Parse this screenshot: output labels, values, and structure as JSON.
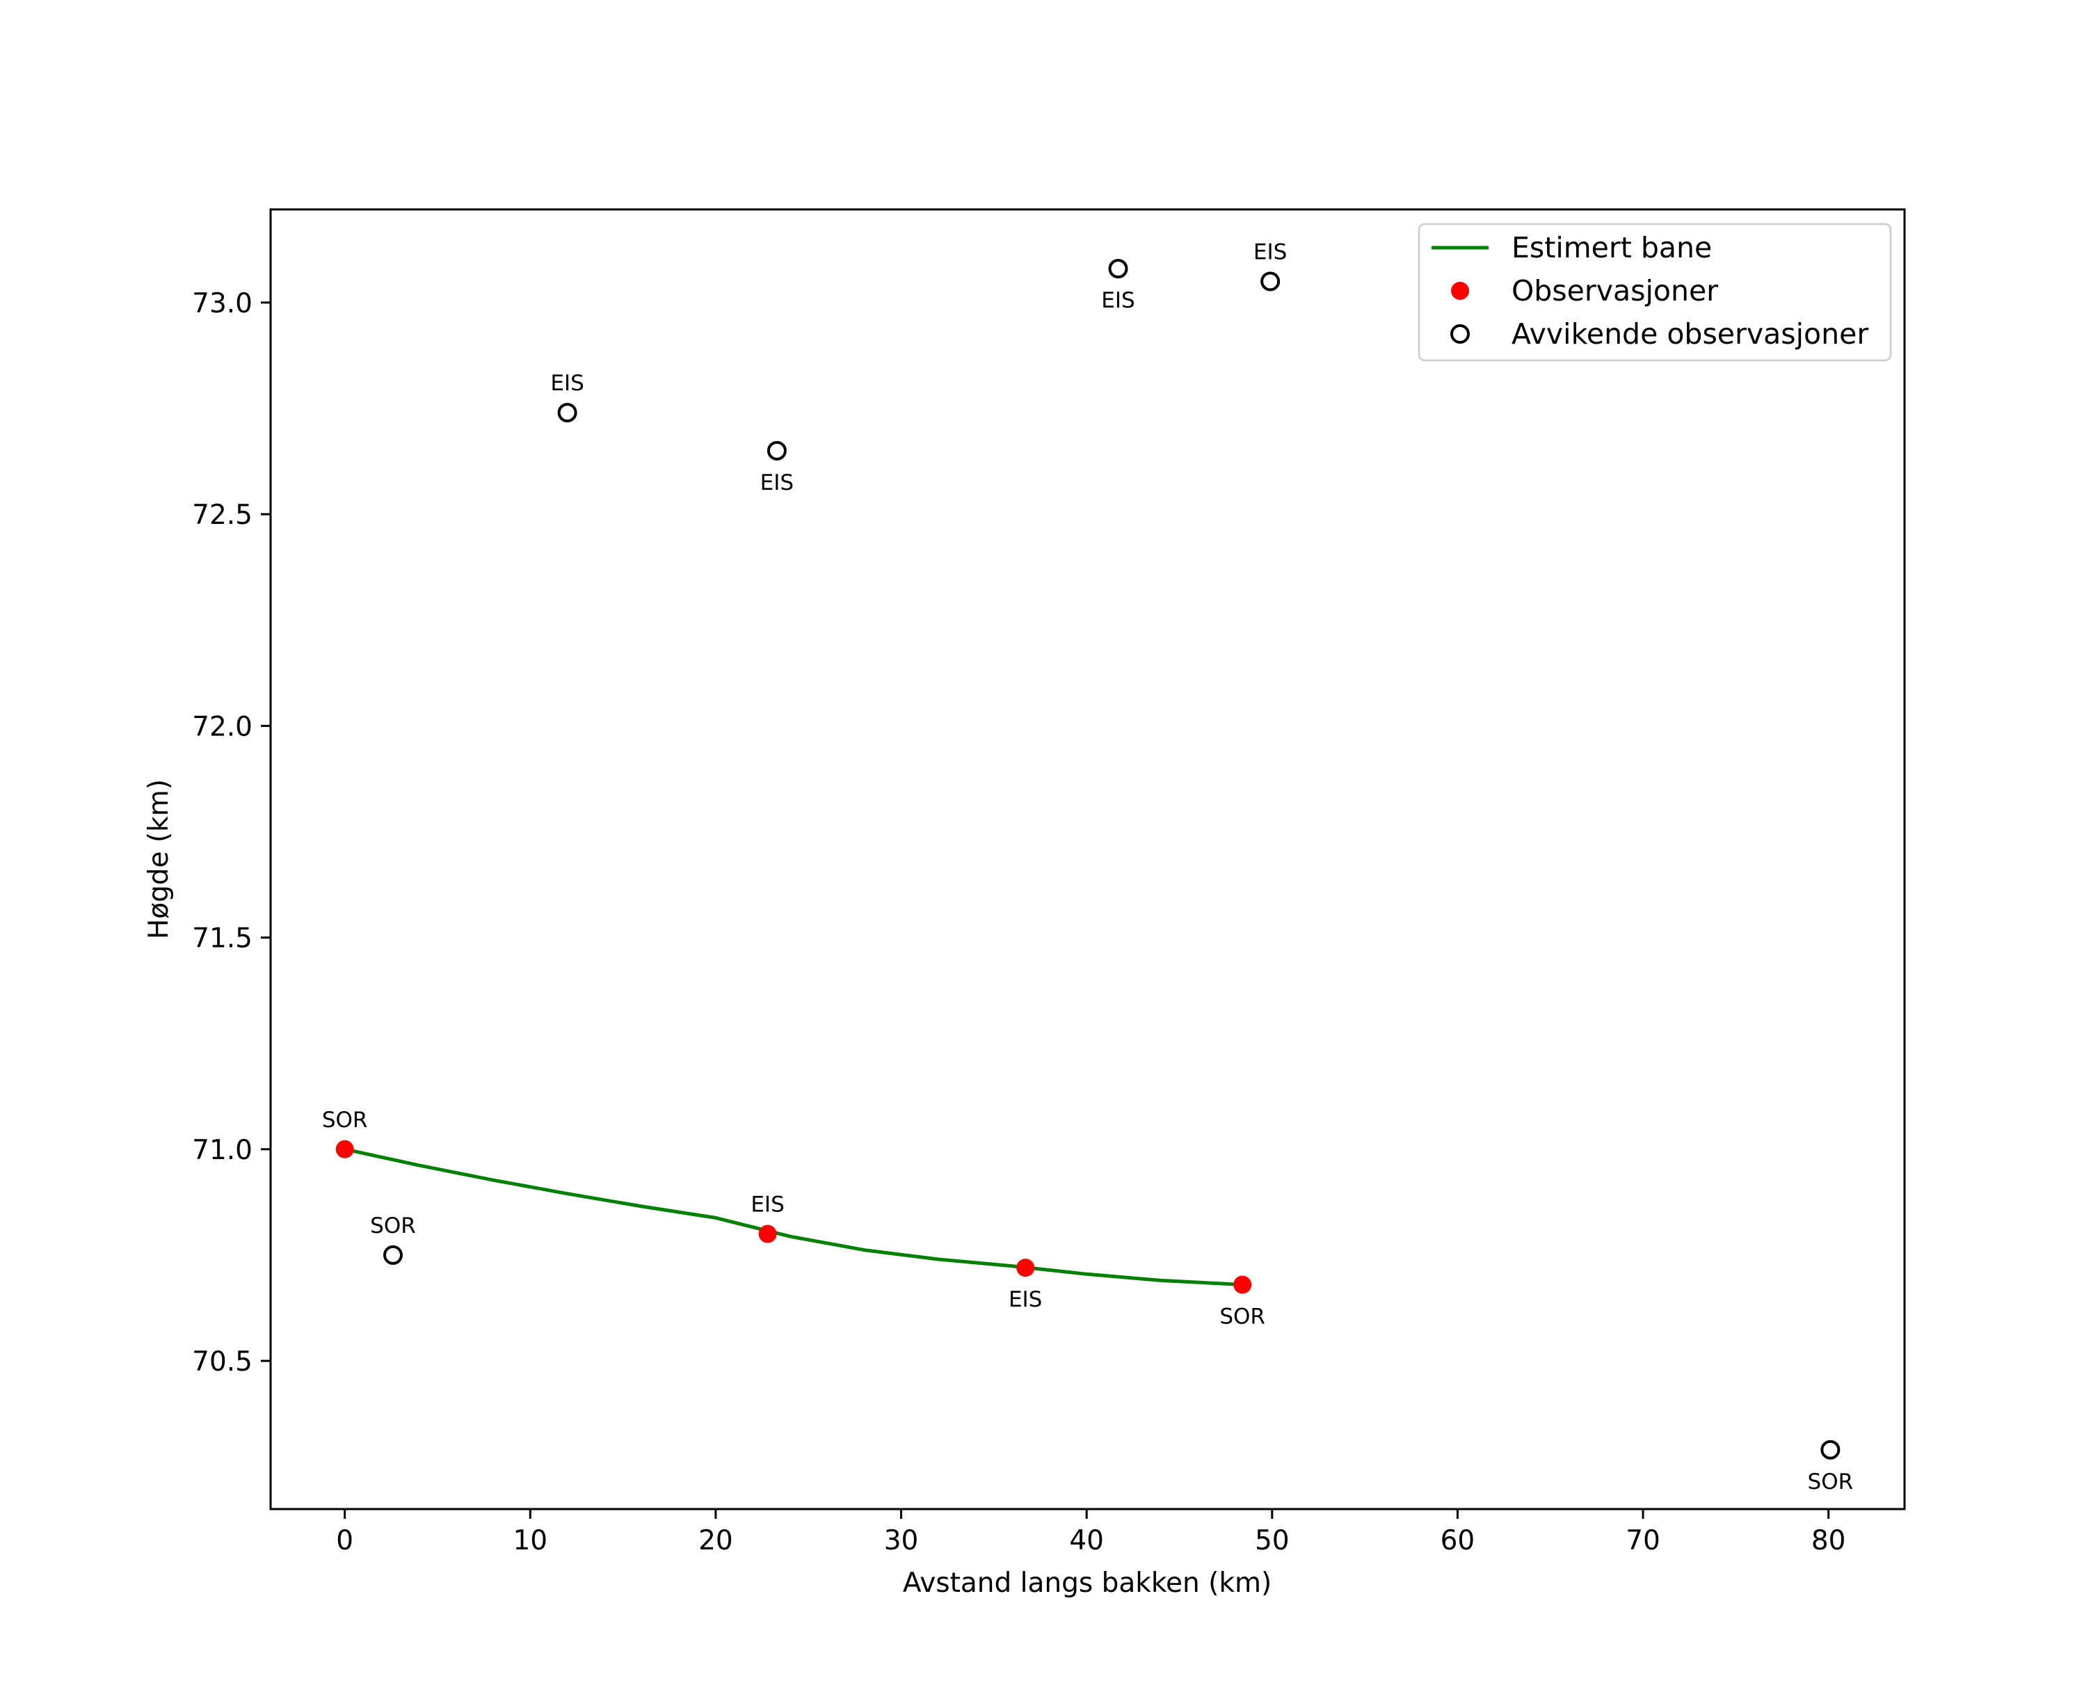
{
  "chart_data": {
    "type": "scatter",
    "title": "",
    "xlabel": "Avstand langs bakken (km)",
    "ylabel": "Høgde (km)",
    "xlim": [
      -4,
      84.1
    ],
    "ylim": [
      70.15,
      73.22
    ],
    "xticks": [
      0,
      10,
      20,
      30,
      40,
      50,
      60,
      70,
      80
    ],
    "yticks": [
      70.5,
      71.0,
      71.5,
      72.0,
      72.5,
      73.0
    ],
    "xtick_labels": [
      "0",
      "10",
      "20",
      "30",
      "40",
      "50",
      "60",
      "70",
      "80"
    ],
    "ytick_labels": [
      "70.5",
      "71.0",
      "71.5",
      "72.0",
      "72.5",
      "73.0"
    ],
    "grid": false,
    "legend_position": "top-right",
    "series": [
      {
        "name": "Estimert bane",
        "kind": "line",
        "color": "#008000",
        "x": [
          0,
          4,
          8,
          12,
          16,
          20,
          24,
          28,
          32,
          36,
          40,
          44,
          48.4
        ],
        "y": [
          71.0,
          70.962,
          70.927,
          70.895,
          70.865,
          70.838,
          70.794,
          70.762,
          70.74,
          70.724,
          70.705,
          70.69,
          70.68
        ]
      },
      {
        "name": "Observasjoner",
        "kind": "scatter",
        "color": "#ff0000",
        "filled": true,
        "points": [
          {
            "x": 0,
            "y": 71.0,
            "label": "SOR",
            "label_pos": "above"
          },
          {
            "x": 22.8,
            "y": 70.8,
            "label": "EIS",
            "label_pos": "above"
          },
          {
            "x": 36.7,
            "y": 70.72,
            "label": "EIS",
            "label_pos": "below"
          },
          {
            "x": 48.4,
            "y": 70.68,
            "label": "SOR",
            "label_pos": "below"
          }
        ]
      },
      {
        "name": "Avvikende observasjoner",
        "kind": "scatter",
        "color": "#000000",
        "filled": false,
        "points": [
          {
            "x": 12.0,
            "y": 72.74,
            "label": "EIS",
            "label_pos": "above"
          },
          {
            "x": 23.3,
            "y": 72.65,
            "label": "EIS",
            "label_pos": "below"
          },
          {
            "x": 41.7,
            "y": 73.08,
            "label": "EIS",
            "label_pos": "below"
          },
          {
            "x": 49.9,
            "y": 73.05,
            "label": "EIS",
            "label_pos": "above"
          },
          {
            "x": 2.6,
            "y": 70.75,
            "label": "SOR",
            "label_pos": "above"
          },
          {
            "x": 80.1,
            "y": 70.29,
            "label": "SOR",
            "label_pos": "below"
          }
        ]
      }
    ],
    "legend": [
      "Estimert bane",
      "Observasjoner",
      "Avvikende observasjoner"
    ]
  }
}
